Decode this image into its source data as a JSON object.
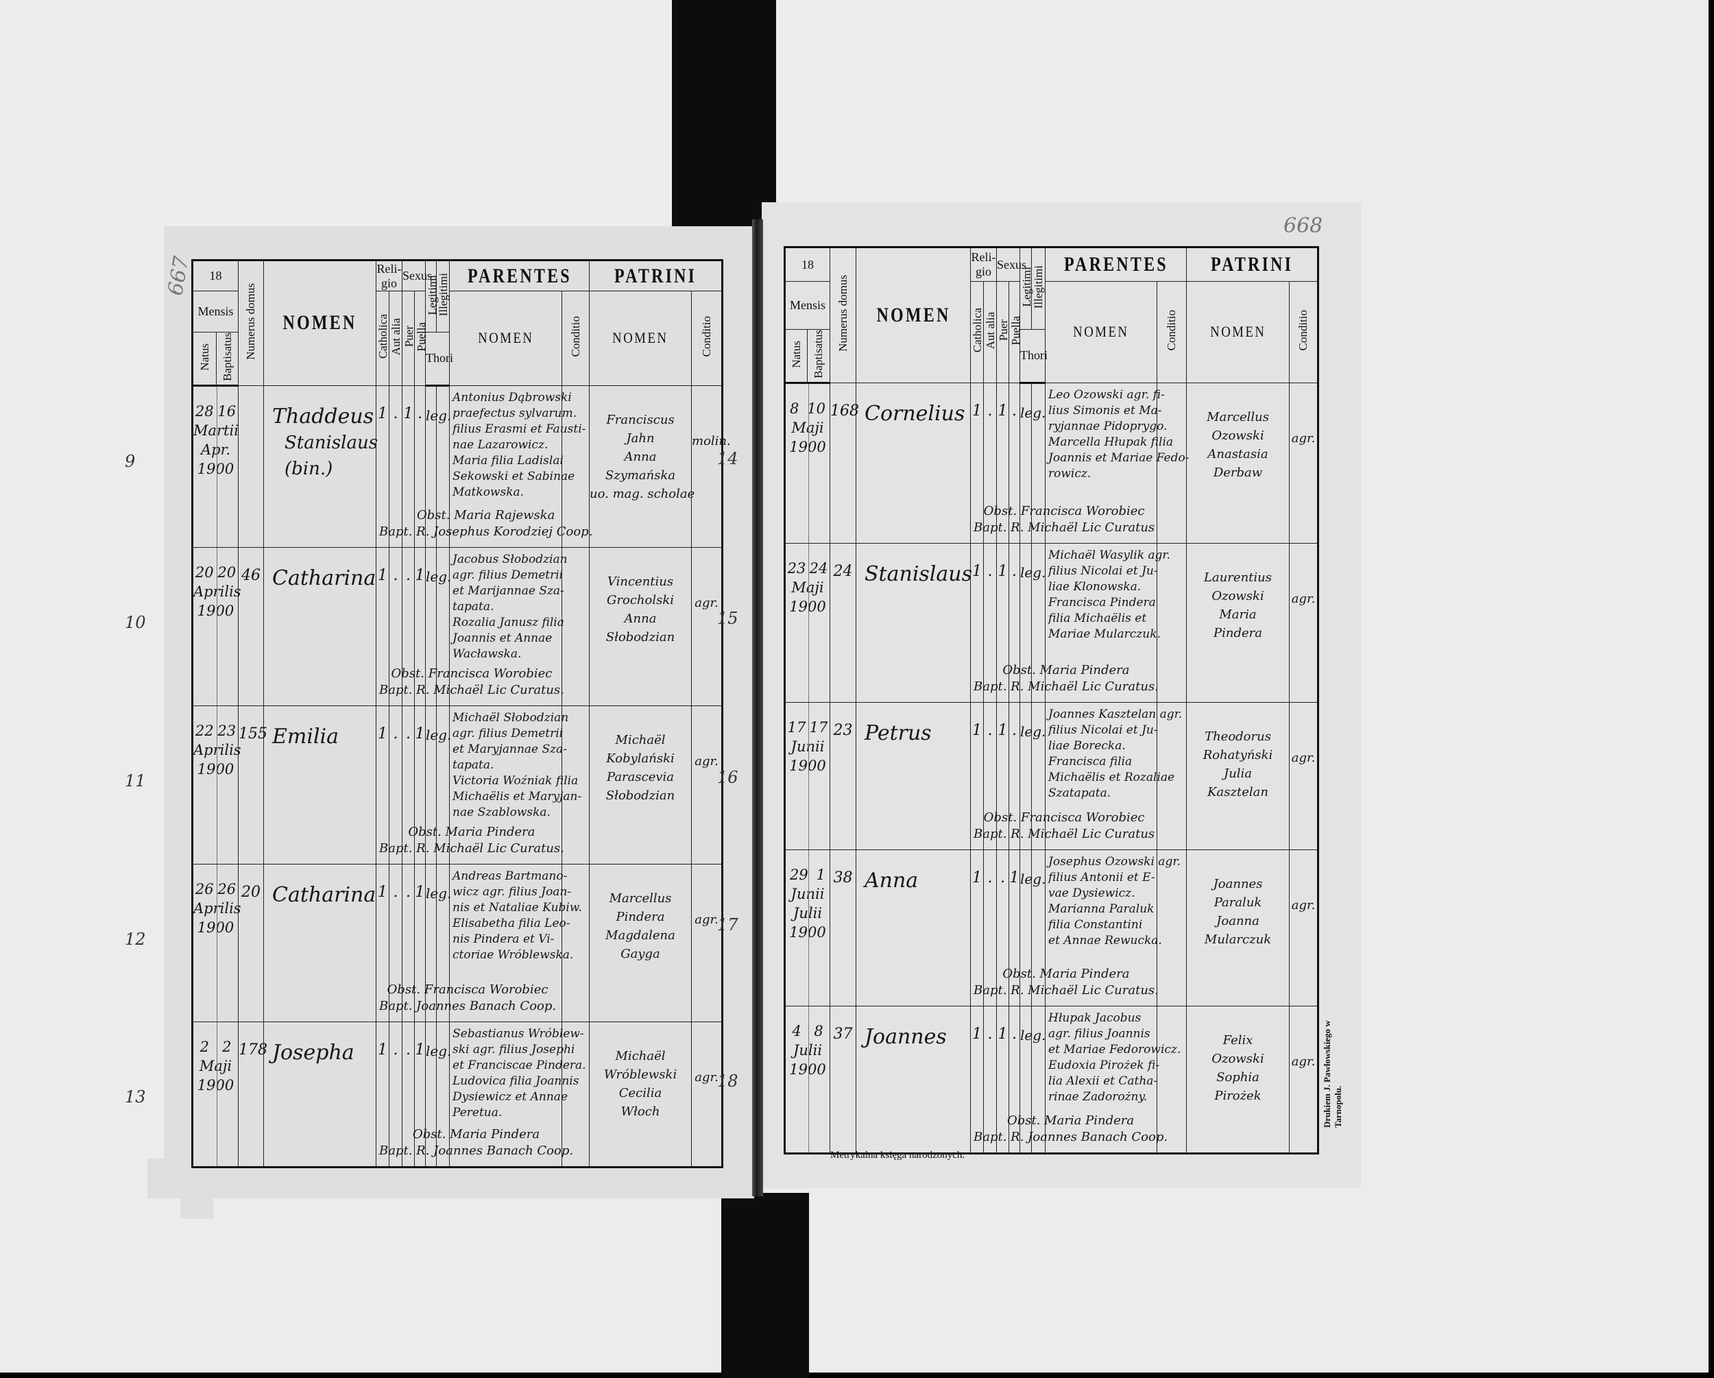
{
  "colors": {
    "ink": "#111111",
    "paper": "#dfdfdf",
    "background": "#ececec",
    "binding": "#0d0d0d"
  },
  "header": {
    "year_prefix": "18",
    "mensis": "Mensis",
    "natus": "Natus",
    "baptisatus": "Baptisatus",
    "numerus_domus": "Numerus domus",
    "nomen": "NOMEN",
    "religio": "Reli- gio",
    "sexus": "Sexus",
    "catholica": "Catholica",
    "aut_alia": "Aut alia",
    "puer": "Puer",
    "puella": "Puella",
    "legitimi": "Legitimi",
    "illegitimi": "Illegitimi",
    "thori": "Thori",
    "parentes": "PARENTES",
    "parentes_nomen": "NOMEN",
    "parentes_conditio": "Conditio",
    "patrini": "PATRINI",
    "patrini_nomen": "NOMEN",
    "patrini_conditio": "Conditio"
  },
  "left_page": {
    "page_number": "667",
    "entries": [
      {
        "margin": "9",
        "natus": "28",
        "baptisatus": "16",
        "month": "Martii Apr.",
        "year": "1900",
        "domus": "",
        "nomen": [
          "Thaddeus",
          "Stanislaus",
          "(bin.)"
        ],
        "marks": [
          "1",
          ".",
          "1",
          "."
        ],
        "legit": "leg.",
        "parentes": [
          "Antonius Dąbrowski",
          "praefectus sylvarum.",
          "filius Erasmi et Fausti-",
          "nae Lazarowicz.",
          "Maria filia Ladislai",
          "Sekowski et Sabinae",
          "Matkowska."
        ],
        "obst": "Obst. Maria Rajewska",
        "bapt": "Bapt. R. Josephus Korodziej Coop.",
        "patrini": [
          "Franciscus",
          "Jahn",
          "Anna",
          "Szymańska",
          "uo. mag. scholae"
        ],
        "patrini_conditio": "molin."
      },
      {
        "margin": "10",
        "natus": "20",
        "baptisatus": "20",
        "month": "Aprilis",
        "year": "1900",
        "domus": "46",
        "nomen": [
          "Catharina"
        ],
        "marks": [
          "1",
          ".",
          ".",
          "1"
        ],
        "legit": "leg.",
        "parentes": [
          "Jacobus Słobodzian",
          "agr. filius Demetrii",
          "et Marijannae Sza-",
          "tapata.",
          "Rozalia Janusz filia",
          "Joannis et Annae",
          "Wacławska."
        ],
        "obst": "Obst. Francisca Worobiec",
        "bapt": "Bapt. R. Michaël Lic Curatus.",
        "patrini": [
          "Vincentius",
          "Grocholski",
          "Anna",
          "Słobodzian"
        ],
        "patrini_conditio": "agr."
      },
      {
        "margin": "11",
        "natus": "22",
        "baptisatus": "23",
        "month": "Aprilis",
        "year": "1900",
        "domus": "155",
        "nomen": [
          "Emilia"
        ],
        "marks": [
          "1",
          ".",
          ".",
          "1"
        ],
        "legit": "leg.",
        "parentes": [
          "Michaël Słobodzian",
          "agr. filius Demetrii",
          "et Maryjannae Sza-",
          "tapata.",
          "Victoria Woźniak filia",
          "Michaëlis et Maryjan-",
          "nae Szablowska."
        ],
        "obst": "Obst. Maria Pindera",
        "bapt": "Bapt. R. Michaël Lic Curatus.",
        "patrini": [
          "Michaël",
          "Kobylański",
          "Parascevia",
          "Słobodzian"
        ],
        "patrini_conditio": "agr."
      },
      {
        "margin": "12",
        "natus": "26",
        "baptisatus": "26",
        "month": "Aprilis",
        "year": "1900",
        "domus": "20",
        "nomen": [
          "Catharina"
        ],
        "marks": [
          "1",
          ".",
          ".",
          "1"
        ],
        "legit": "leg.",
        "parentes": [
          "Andreas Bartmano-",
          "wicz agr. filius Joan-",
          "nis et Nataliae Kubiw.",
          "Elisabetha filia Leo-",
          "nis Pindera et Vi-",
          "ctoriae Wróblewska."
        ],
        "obst": "Obst. Francisca Worobiec",
        "bapt": "Bapt. Joannes Banach Coop.",
        "patrini": [
          "Marcellus",
          "Pindera",
          "Magdalena",
          "Gayga"
        ],
        "patrini_conditio": "agr."
      },
      {
        "margin": "13",
        "natus": "2",
        "baptisatus": "2",
        "month": "Maji",
        "year": "1900",
        "domus": "178",
        "nomen": [
          "Josepha"
        ],
        "marks": [
          "1",
          ".",
          ".",
          "1"
        ],
        "legit": "leg.",
        "parentes": [
          "Sebastianus Wróblew-",
          "ski agr. filius Josephi",
          "et Franciscae Pindera.",
          "Ludovica filia Joannis",
          "Dysiewicz et Annae",
          "Peretua."
        ],
        "obst": "Obst. Maria Pindera",
        "bapt": "Bapt. R. Joannes Banach Coop.",
        "patrini": [
          "Michaël",
          "Wróblewski",
          "Cecilia",
          "Włoch"
        ],
        "patrini_conditio": "agr."
      }
    ]
  },
  "right_page": {
    "page_number": "668",
    "entries": [
      {
        "margin": "14",
        "natus": "8",
        "baptisatus": "10",
        "month": "Maji",
        "year": "1900",
        "domus": "168",
        "nomen": [
          "Cornelius"
        ],
        "marks": [
          "1",
          ".",
          "1",
          "."
        ],
        "legit": "leg.",
        "parentes": [
          "Leo Ozowski agr. fi-",
          "lius Simonis et Ma-",
          "ryjannae Pidoprygo.",
          "Marcella Hłupak filia",
          "Joannis et Mariae Fedo-",
          "rowicz."
        ],
        "obst": "Obst. Francisca Worobiec",
        "bapt": "Bapt. R. Michaël Lic Curatus",
        "patrini": [
          "Marcellus",
          "Ozowski",
          "Anastasia",
          "Derbaw"
        ],
        "patrini_conditio": "agr."
      },
      {
        "margin": "15",
        "natus": "23",
        "baptisatus": "24",
        "month": "Maji",
        "year": "1900",
        "domus": "24",
        "nomen": [
          "Stanislaus"
        ],
        "marks": [
          "1",
          ".",
          "1",
          "."
        ],
        "legit": "leg.",
        "parentes": [
          "Michaël Wasylik agr.",
          "filius Nicolai et Ju-",
          "liae Klonowska.",
          "Francisca Pindera",
          "filia Michaëlis et",
          "Mariae Mularczuk."
        ],
        "obst": "Obst. Maria Pindera",
        "bapt": "Bapt. R. Michaël Lic Curatus.",
        "patrini": [
          "Laurentius",
          "Ozowski",
          "Maria",
          "Pindera"
        ],
        "patrini_conditio": "agr."
      },
      {
        "margin": "16",
        "natus": "17",
        "baptisatus": "17",
        "month": "Junii",
        "year": "1900",
        "domus": "23",
        "nomen": [
          "Petrus"
        ],
        "marks": [
          "1",
          ".",
          "1",
          "."
        ],
        "legit": "leg.",
        "parentes": [
          "Joannes Kasztelan agr.",
          "filius Nicolai et Ju-",
          "liae Borecka.",
          "Francisca filia",
          "Michaëlis et Rozaliae",
          "Szatapata."
        ],
        "obst": "Obst. Francisca Worobiec",
        "bapt": "Bapt. R. Michaël Lic Curatus",
        "patrini": [
          "Theodorus",
          "Rohatyński",
          "Julia",
          "Kasztelan"
        ],
        "patrini_conditio": "agr."
      },
      {
        "margin": "17",
        "natus": "29",
        "baptisatus": "1",
        "month": "Junii Julii",
        "year": "1900",
        "domus": "38",
        "nomen": [
          "Anna"
        ],
        "marks": [
          "1",
          ".",
          ".",
          "1"
        ],
        "legit": "leg.",
        "parentes": [
          "Josephus Ozowski agr.",
          "filius Antonii et E-",
          "vae Dysiewicz.",
          "Marianna Paraluk",
          "filia Constantini",
          "et Annae Rewucka."
        ],
        "obst": "Obst. Maria Pindera",
        "bapt": "Bapt. R. Michaël Lic Curatus.",
        "patrini": [
          "Joannes",
          "Paraluk",
          "Joanna",
          "Mularczuk"
        ],
        "patrini_conditio": "agr."
      },
      {
        "margin": "18",
        "natus": "4",
        "baptisatus": "8",
        "month": "Julii",
        "year": "1900",
        "domus": "37",
        "nomen": [
          "Joannes"
        ],
        "marks": [
          "1",
          ".",
          "1",
          "."
        ],
        "legit": "leg.",
        "parentes": [
          "Hłupak Jacobus",
          "agr. filius Joannis",
          "et Mariae Fedorowicz.",
          "Eudoxia Pirożek fi-",
          "lia Alexii et Catha-",
          "rinae Zadorożny."
        ],
        "obst": "Obst. Maria Pindera",
        "bapt": "Bapt. R. Joannes Banach Coop.",
        "patrini": [
          "Felix",
          "Ozowski",
          "Sophia",
          "Pirożek"
        ],
        "patrini_conditio": "agr."
      }
    ]
  },
  "footer": {
    "book_title": "Metrykalna księga narodzonych.",
    "printer": "Drukiem J. Pawłowskiego w Tarnopolu."
  }
}
